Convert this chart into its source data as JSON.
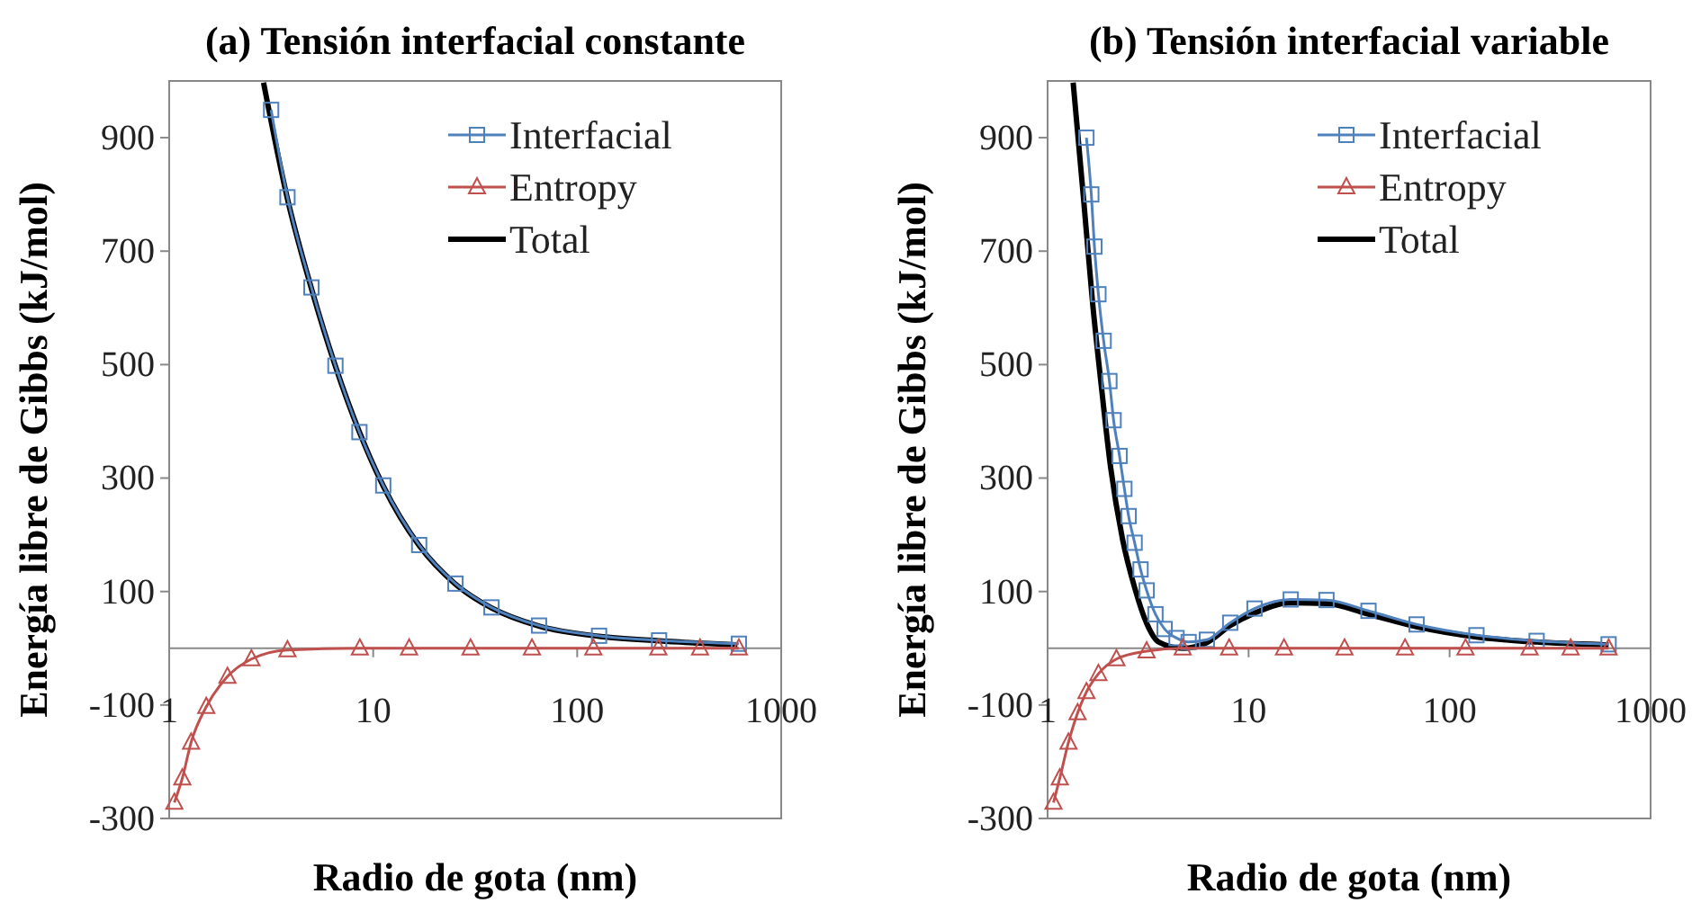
{
  "chart_data": [
    {
      "type": "line",
      "title": "(a) Tensión interfacial constante",
      "xlabel": "Radio de gota (nm)",
      "ylabel": "Energía libre de Gibbs (kJ/mol)",
      "log": "x",
      "xlim": [
        1,
        1000
      ],
      "ylim": [
        -300,
        1000
      ],
      "xticks": [
        1,
        10,
        100,
        1000
      ],
      "yticks": [
        -300,
        -100,
        100,
        300,
        500,
        700,
        900
      ],
      "legend": "top right",
      "series": [
        {
          "name": "Interfacial",
          "color": "#4f81bd",
          "marker": "square",
          "x": [
            3.16,
            3.8,
            4.98,
            6.53,
            8.56,
            11.2,
            16.8,
            25.3,
            38,
            65,
            128,
            252,
            620
          ],
          "values": [
            949,
            795,
            636,
            498,
            381,
            287,
            182,
            114,
            72,
            40,
            22,
            14,
            8
          ]
        },
        {
          "name": "Entropy",
          "color": "#c0504d",
          "marker": "triangle",
          "x": [
            1.06,
            1.16,
            1.28,
            1.52,
            1.93,
            2.53,
            3.8,
            8.6,
            15,
            30,
            60,
            120,
            250,
            400,
            620
          ],
          "values": [
            -272,
            -229,
            -166,
            -103,
            -50,
            -19,
            -3,
            0,
            0,
            0,
            0,
            0,
            0,
            0,
            0
          ]
        },
        {
          "name": "Total",
          "color": "#000000",
          "x": [
            2.9,
            3.8,
            4.98,
            6.53,
            8.56,
            11.2,
            16.8,
            25.3,
            38,
            65,
            128,
            252,
            610
          ],
          "values": [
            997,
            792,
            634,
            497,
            381,
            286,
            181,
            113,
            71,
            39,
            21,
            13,
            6
          ]
        }
      ]
    },
    {
      "type": "line",
      "title": "(b) Tensión interfacial variable",
      "xlabel": "Radio de gota (nm)",
      "ylabel": "Energía libre de Gibbs (kJ/mol)",
      "log": "x",
      "xlim": [
        1,
        1000
      ],
      "ylim": [
        -300,
        1000
      ],
      "xticks": [
        1,
        10,
        100,
        1000
      ],
      "yticks": [
        -300,
        -100,
        100,
        300,
        500,
        700,
        900
      ],
      "legend": "top right",
      "series": [
        {
          "name": "Interfacial",
          "color": "#4f81bd",
          "marker": "square",
          "x": [
            1.56,
            1.65,
            1.71,
            1.79,
            1.9,
            2.03,
            2.13,
            2.28,
            2.41,
            2.53,
            2.71,
            2.9,
            3.11,
            3.44,
            3.82,
            4.38,
            5.03,
            6.2,
            8.1,
            10.7,
            16.2,
            24.4,
            39.5,
            68.5,
            136,
            271,
            618
          ],
          "values": [
            900,
            800,
            708,
            624,
            542,
            471,
            402,
            339,
            281,
            233,
            186,
            139,
            102,
            60,
            34,
            18,
            11,
            15,
            45,
            70,
            86,
            85,
            66,
            42,
            23,
            13,
            7
          ]
        },
        {
          "name": "Entropy",
          "color": "#c0504d",
          "marker": "triangle",
          "x": [
            1.07,
            1.15,
            1.27,
            1.41,
            1.56,
            1.79,
            2.2,
            3.11,
            4.7,
            8,
            15,
            30,
            60,
            120,
            250,
            400,
            618
          ],
          "values": [
            -272,
            -229,
            -166,
            -114,
            -77,
            -45,
            -19,
            -5,
            0,
            0,
            0,
            0,
            0,
            0,
            0,
            0,
            0
          ]
        },
        {
          "name": "Total",
          "color": "#000000",
          "x": [
            1.34,
            1.51,
            1.67,
            1.86,
            2.06,
            2.36,
            2.71,
            3.11,
            3.57,
            4.7,
            6.2,
            8.1,
            10.7,
            16.2,
            24.4,
            39.5,
            68.5,
            136,
            271,
            618
          ],
          "values": [
            997,
            792,
            613,
            455,
            318,
            192,
            107,
            44,
            11,
            0,
            10,
            40,
            62,
            80,
            79,
            60,
            38,
            20,
            11,
            6
          ]
        }
      ]
    }
  ]
}
